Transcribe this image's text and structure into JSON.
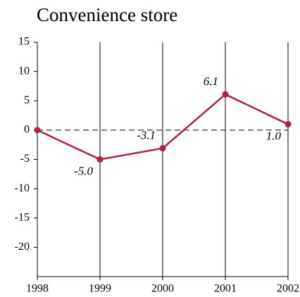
{
  "chart_data": {
    "type": "line",
    "title": "Convenience store",
    "categories": [
      "1998",
      "1999",
      "2000",
      "2001",
      "2002"
    ],
    "series": [
      {
        "name": null,
        "color": "#b0203f",
        "values": [
          0,
          -5.0,
          -3.1,
          6.1,
          1.0
        ],
        "value_labels": [
          null,
          "-5.0",
          "-3.1",
          "6.1",
          "1.0"
        ]
      }
    ],
    "ylim": [
      -25,
      15
    ],
    "yticks": [
      -20,
      -15,
      -10,
      -5,
      0,
      5,
      10,
      15
    ],
    "grid": true
  }
}
